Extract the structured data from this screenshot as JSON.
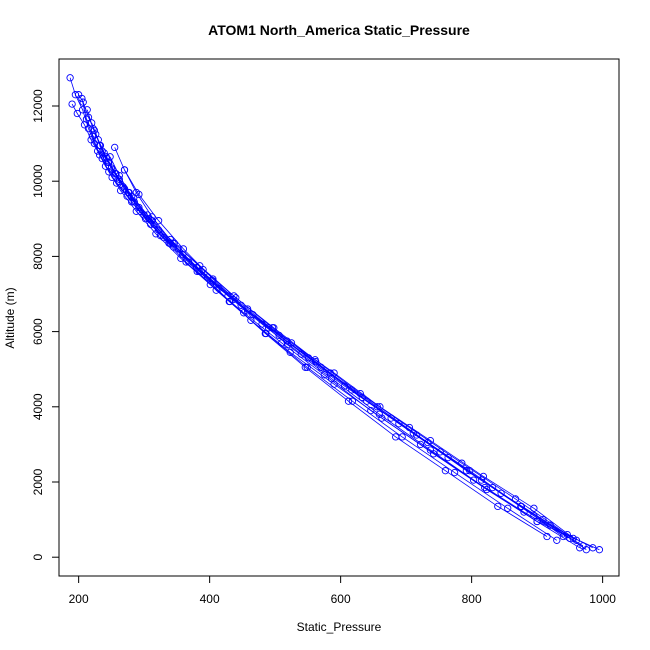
{
  "chart_data": {
    "type": "scatter",
    "title": "ATOM1 North_America Static_Pressure",
    "xlabel": "Static_Pressure",
    "ylabel": "Altitude (m)",
    "xlim": [
      170,
      1025
    ],
    "ylim": [
      -500,
      13250
    ],
    "x_ticks": [
      200,
      400,
      600,
      800,
      1000
    ],
    "y_ticks": [
      0,
      2000,
      4000,
      6000,
      8000,
      10000,
      12000
    ],
    "marker": "open-circle",
    "connected_lines": true,
    "color": "#0000ff",
    "series": [
      {
        "x": [
          187,
          195,
          206,
          215,
          224,
          236,
          251,
          274,
          302,
          338,
          380,
          428,
          480,
          540,
          606,
          677,
          752,
          832,
          909,
          975
        ],
        "y": [
          12750,
          12300,
          11900,
          11400,
          11000,
          10600,
          10100,
          9600,
          9000,
          8350,
          7700,
          6950,
          6200,
          5400,
          4550,
          3700,
          2800,
          1850,
          1000,
          200
        ]
      },
      {
        "x": [
          190,
          198,
          209,
          219,
          229,
          241,
          258,
          281,
          310,
          345,
          387,
          436,
          490,
          551,
          617,
          689,
          764,
          845,
          920,
          985
        ],
        "y": [
          12050,
          11800,
          11500,
          11100,
          10800,
          10400,
          9950,
          9450,
          8850,
          8250,
          7600,
          6850,
          6100,
          5300,
          4450,
          3550,
          2650,
          1700,
          850,
          250
        ]
      },
      {
        "x": [
          200,
          207,
          215,
          224,
          233,
          243,
          256,
          276,
          300,
          330,
          368,
          414,
          466,
          525,
          590,
          660,
          737,
          818,
          895,
          960
        ],
        "y": [
          12300,
          12100,
          11700,
          11350,
          10950,
          10600,
          10200,
          9700,
          9100,
          8500,
          7850,
          7150,
          6450,
          5700,
          4900,
          4000,
          3100,
          2150,
          1300,
          450
        ]
      },
      {
        "x": [
          205,
          212,
          221,
          232,
          246,
          264,
          288,
          318,
          356,
          401,
          452,
          510,
          575,
          646,
          722,
          803,
          880,
          950
        ],
        "y": [
          12200,
          11650,
          11200,
          10700,
          10250,
          9750,
          9200,
          8600,
          7950,
          7250,
          6500,
          5700,
          4850,
          3900,
          3000,
          2050,
          1200,
          500
        ]
      },
      {
        "x": [
          213,
          222,
          233,
          246,
          262,
          284,
          312,
          346,
          390,
          440,
          498,
          561,
          630,
          705,
          785,
          867,
          946
        ],
        "y": [
          11900,
          11400,
          10950,
          10500,
          10050,
          9550,
          8950,
          8350,
          7650,
          6900,
          6100,
          5250,
          4350,
          3450,
          2500,
          1550,
          600
        ]
      },
      {
        "x": [
          220,
          230,
          242,
          257,
          277,
          305,
          340,
          385,
          437,
          496,
          562,
          633,
          711,
          792,
          876,
          955
        ],
        "y": [
          11550,
          11100,
          10650,
          10200,
          9700,
          9100,
          8450,
          7750,
          6950,
          6100,
          5200,
          4250,
          3300,
          2300,
          1350,
          500
        ]
      },
      {
        "x": [
          226,
          236,
          250,
          268,
          292,
          322,
          359,
          405,
          458,
          518,
          584,
          656,
          733,
          815,
          895,
          970
        ],
        "y": [
          11250,
          10800,
          10350,
          9850,
          9300,
          8700,
          8050,
          7350,
          6600,
          5750,
          4900,
          4000,
          3050,
          2050,
          1100,
          300
        ]
      },
      {
        "x": [
          232,
          245,
          262,
          285,
          315,
          352,
          397,
          448,
          506,
          570,
          640,
          716,
          797,
          875,
          940
        ],
        "y": [
          10950,
          10500,
          10000,
          9450,
          8850,
          8200,
          7450,
          6700,
          5900,
          5050,
          4150,
          3250,
          2300,
          1350,
          550
        ]
      },
      {
        "x": [
          239,
          252,
          270,
          294,
          325,
          364,
          410,
          463,
          523,
          590,
          663,
          742,
          823,
          900,
          965
        ],
        "y": [
          10750,
          10300,
          9800,
          9200,
          8550,
          7850,
          7100,
          6300,
          5450,
          4600,
          3700,
          2750,
          1800,
          950,
          250
        ]
      },
      {
        "x": [
          248,
          262,
          281,
          307,
          340,
          381,
          430,
          486,
          549,
          618,
          694,
          774,
          855,
          930
        ],
        "y": [
          10650,
          10150,
          9600,
          9000,
          8350,
          7600,
          6800,
          5950,
          5050,
          4150,
          3200,
          2250,
          1300,
          450
        ]
      },
      {
        "x": [
          255,
          270,
          292,
          322,
          360,
          405,
          458,
          519,
          586,
          659,
          737,
          820,
          900,
          995
        ],
        "y": [
          10900,
          10300,
          9650,
          8950,
          8200,
          7400,
          6550,
          5650,
          4750,
          3800,
          2850,
          1850,
          950,
          200
        ]
      },
      {
        "x": [
          270,
          288,
          312,
          344,
          384,
          431,
          485,
          546,
          612,
          684,
          760,
          840,
          915
        ],
        "y": [
          10300,
          9700,
          9050,
          8350,
          7600,
          6800,
          5950,
          5050,
          4150,
          3200,
          2300,
          1350,
          550
        ]
      }
    ]
  }
}
